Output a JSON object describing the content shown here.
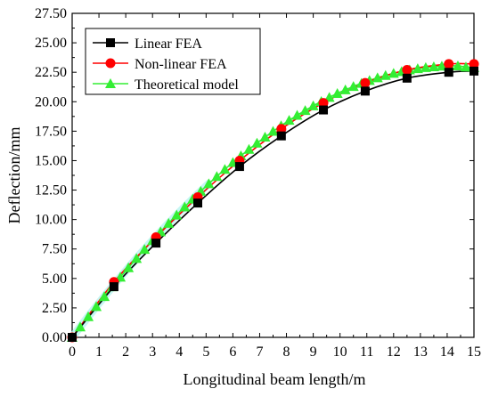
{
  "chart_data": {
    "type": "line",
    "title": "",
    "xlabel": "Longitudinal beam length/m",
    "ylabel": "Deflection/mm",
    "xlim": [
      0,
      15
    ],
    "ylim": [
      0,
      27.5
    ],
    "x_ticks": [
      "0",
      "1",
      "2",
      "3",
      "4",
      "5",
      "6",
      "7",
      "8",
      "9",
      "10",
      "11",
      "12",
      "13",
      "14",
      "15"
    ],
    "y_ticks": [
      "0.00",
      "2.50",
      "5.00",
      "7.50",
      "10.00",
      "12.50",
      "15.00",
      "17.50",
      "20.00",
      "22.50",
      "25.00",
      "27.50"
    ],
    "grid": false,
    "legend_position": "top-left",
    "series": [
      {
        "name": "Linear FEA",
        "color": "#000000",
        "marker": "square",
        "x": [
          0,
          1.56,
          3.13,
          4.69,
          6.25,
          7.81,
          9.38,
          10.94,
          12.5,
          14.06,
          15.0
        ],
        "y": [
          0.0,
          4.3,
          8.0,
          11.4,
          14.5,
          17.1,
          19.3,
          20.9,
          22.0,
          22.5,
          22.6
        ]
      },
      {
        "name": "Non-linear FEA",
        "color": "#ff0000",
        "marker": "circle",
        "x": [
          0,
          1.56,
          3.13,
          4.69,
          6.25,
          7.81,
          9.38,
          10.94,
          12.5,
          14.06,
          15.0
        ],
        "y": [
          0.0,
          4.7,
          8.5,
          11.9,
          15.0,
          17.7,
          19.9,
          21.6,
          22.7,
          23.2,
          23.2
        ]
      },
      {
        "name": "Theoretical model",
        "color": "#33ee33",
        "marker": "triangle",
        "x": [
          0.0,
          0.3,
          0.6,
          0.9,
          1.2,
          1.5,
          1.8,
          2.1,
          2.4,
          2.7,
          3.0,
          3.3,
          3.6,
          3.9,
          4.2,
          4.5,
          4.8,
          5.1,
          5.4,
          5.7,
          6.0,
          6.3,
          6.6,
          6.9,
          7.2,
          7.5,
          7.8,
          8.1,
          8.4,
          8.7,
          9.0,
          9.3,
          9.6,
          9.9,
          10.2,
          10.5,
          10.8,
          11.1,
          11.4,
          11.7,
          12.0,
          12.3,
          12.6,
          12.9,
          13.2,
          13.5,
          13.8,
          14.1,
          14.4,
          14.7,
          15.0
        ],
        "y": [
          0.0,
          0.89,
          1.76,
          2.62,
          3.47,
          4.3,
          5.11,
          5.91,
          6.7,
          7.47,
          8.22,
          8.96,
          9.68,
          10.38,
          11.07,
          11.74,
          12.4,
          13.04,
          13.66,
          14.26,
          14.85,
          15.41,
          15.96,
          16.49,
          17.0,
          17.49,
          17.96,
          18.42,
          18.85,
          19.26,
          19.65,
          20.02,
          20.37,
          20.7,
          21.01,
          21.3,
          21.56,
          21.81,
          22.03,
          22.23,
          22.41,
          22.56,
          22.7,
          22.81,
          22.9,
          22.97,
          23.02,
          23.04,
          23.04,
          22.95,
          22.9
        ]
      }
    ]
  }
}
